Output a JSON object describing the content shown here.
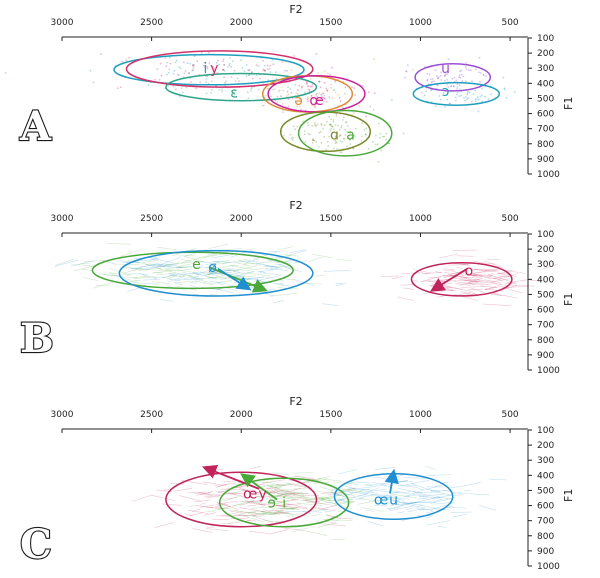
{
  "chart_data": [
    {
      "type": "scatter",
      "panel_label": "A",
      "xlabel": "F2",
      "ylabel": "F1",
      "xlim": [
        3000,
        400
      ],
      "ylim": [
        100,
        1000
      ],
      "xticks": [
        3000,
        2500,
        2000,
        1500,
        1000,
        500
      ],
      "yticks": [
        100,
        200,
        300,
        400,
        500,
        600,
        700,
        800,
        900,
        1000
      ],
      "ellipses": [
        {
          "label": "i",
          "color": "#1f9fbf",
          "cx": 2180,
          "cy": 310,
          "rx": 530,
          "ry": 100
        },
        {
          "label": "y",
          "color": "#d4306a",
          "cx": 2120,
          "cy": 305,
          "rx": 520,
          "ry": 120
        },
        {
          "label": "ɛ",
          "color": "#2fa58a",
          "cx": 2000,
          "cy": 425,
          "rx": 420,
          "ry": 90
        },
        {
          "label": "ə",
          "color": "#e08a36",
          "cx": 1630,
          "cy": 470,
          "rx": 250,
          "ry": 120
        },
        {
          "label": "œ",
          "color": "#cc1f9a",
          "cx": 1580,
          "cy": 470,
          "rx": 270,
          "ry": 120
        },
        {
          "label": "ɑ",
          "color": "#7a8a2a",
          "cx": 1530,
          "cy": 720,
          "rx": 250,
          "ry": 130
        },
        {
          "label": "a",
          "color": "#4aa83a",
          "cx": 1420,
          "cy": 730,
          "rx": 260,
          "ry": 150
        },
        {
          "label": "u",
          "color": "#9b4fd6",
          "cx": 820,
          "cy": 360,
          "rx": 210,
          "ry": 90
        },
        {
          "label": "ɔ",
          "color": "#1f9fbf",
          "cx": 800,
          "cy": 470,
          "rx": 240,
          "ry": 75
        }
      ],
      "vowel_labels": [
        {
          "text": "i",
          "color": "#1f9fbf",
          "x": 2200,
          "y": 300
        },
        {
          "text": "y",
          "color": "#d4306a",
          "x": 2150,
          "y": 300
        },
        {
          "text": "ɛ",
          "color": "#2fa58a",
          "x": 2040,
          "y": 460
        },
        {
          "text": "ə",
          "color": "#e08a36",
          "x": 1680,
          "y": 510
        },
        {
          "text": "œ",
          "color": "#cc1f9a",
          "x": 1580,
          "y": 510
        },
        {
          "text": "ɑ",
          "color": "#7a8a2a",
          "x": 1480,
          "y": 740
        },
        {
          "text": "a",
          "color": "#4aa83a",
          "x": 1390,
          "y": 740
        },
        {
          "text": "u",
          "color": "#9b4fd6",
          "x": 860,
          "y": 300
        },
        {
          "text": "ɔ",
          "color": "#1f9fbf",
          "x": 860,
          "y": 450
        }
      ]
    },
    {
      "type": "scatter",
      "panel_label": "B",
      "xlabel": "F2",
      "ylabel": "F1",
      "xlim": [
        3000,
        400
      ],
      "ylim": [
        100,
        1000
      ],
      "xticks": [
        3000,
        2500,
        2000,
        1500,
        1000,
        500
      ],
      "yticks": [
        100,
        200,
        300,
        400,
        500,
        600,
        700,
        800,
        900,
        1000
      ],
      "ellipses": [
        {
          "label": "e",
          "color": "#4aa83a",
          "cx": 2270,
          "cy": 340,
          "rx": 560,
          "ry": 120
        },
        {
          "label": "ø",
          "color": "#1f8fd0",
          "cx": 2140,
          "cy": 360,
          "rx": 540,
          "ry": 150
        },
        {
          "label": "o",
          "color": "#c0245a",
          "cx": 770,
          "cy": 400,
          "rx": 280,
          "ry": 110
        }
      ],
      "arrows": [
        {
          "color": "#4aa83a",
          "from": [
            2180,
            320
          ],
          "to": [
            1870,
            470
          ]
        },
        {
          "color": "#1f8fd0",
          "from": [
            2130,
            330
          ],
          "to": [
            1960,
            460
          ]
        },
        {
          "color": "#c0245a",
          "from": [
            740,
            330
          ],
          "to": [
            930,
            470
          ]
        }
      ],
      "vowel_labels": [
        {
          "text": "e",
          "color": "#4aa83a",
          "x": 2250,
          "y": 300
        },
        {
          "text": "ø",
          "color": "#1f8fd0",
          "x": 2160,
          "y": 320
        },
        {
          "text": "o",
          "color": "#c0245a",
          "x": 730,
          "y": 340
        }
      ]
    },
    {
      "type": "scatter",
      "panel_label": "C",
      "xlabel": "F2",
      "ylabel": "F1",
      "xlim": [
        3000,
        400
      ],
      "ylim": [
        100,
        1000
      ],
      "xticks": [
        3000,
        2500,
        2000,
        1500,
        1000,
        500
      ],
      "yticks": [
        100,
        200,
        300,
        400,
        500,
        600,
        700,
        800,
        900,
        1000
      ],
      "ellipses": [
        {
          "label": "y",
          "color": "#c0245a",
          "cx": 2000,
          "cy": 560,
          "rx": 420,
          "ry": 180
        },
        {
          "label": "i",
          "color": "#4aa83a",
          "cx": 1760,
          "cy": 580,
          "rx": 360,
          "ry": 160
        },
        {
          "label": "u",
          "color": "#1f8fd0",
          "cx": 1150,
          "cy": 540,
          "rx": 330,
          "ry": 150
        }
      ],
      "arrows": [
        {
          "color": "#c0245a",
          "from": [
            1900,
            490
          ],
          "to": [
            2200,
            350
          ]
        },
        {
          "color": "#4aa83a",
          "from": [
            1800,
            560
          ],
          "to": [
            1990,
            400
          ]
        },
        {
          "color": "#1f8fd0",
          "from": [
            1170,
            520
          ],
          "to": [
            1150,
            380
          ]
        }
      ],
      "vowel_labels": [
        {
          "text": "œ",
          "color": "#c0245a",
          "x": 1950,
          "y": 520
        },
        {
          "text": "y",
          "color": "#c0245a",
          "x": 1880,
          "y": 520
        },
        {
          "text": "ɘ",
          "color": "#4aa83a",
          "x": 1830,
          "y": 580
        },
        {
          "text": "i",
          "color": "#4aa83a",
          "x": 1760,
          "y": 580
        },
        {
          "text": "œ",
          "color": "#1f8fd0",
          "x": 1220,
          "y": 560
        },
        {
          "text": "u",
          "color": "#1f8fd0",
          "x": 1150,
          "y": 560
        }
      ]
    }
  ]
}
